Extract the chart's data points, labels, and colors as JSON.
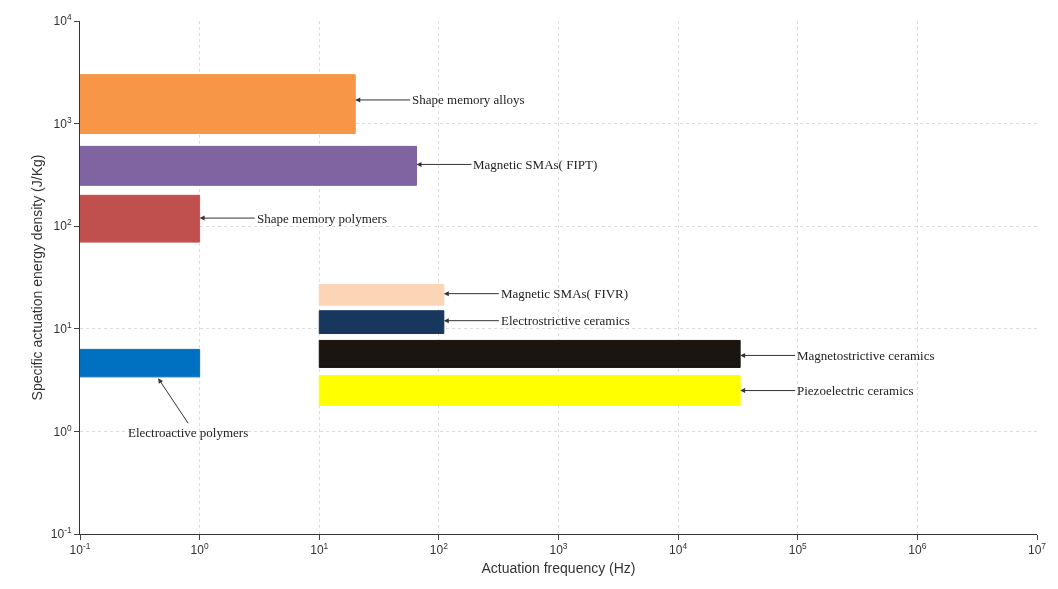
{
  "chart_data": {
    "type": "area",
    "xlabel": "Actuation frequency (Hz)",
    "ylabel": "Specific actuation energy density (J/Kg)",
    "log": "xy",
    "grid": true,
    "xlim": [
      0.1,
      10000000
    ],
    "ylim": [
      0.1,
      10000
    ],
    "xticks": [
      {
        "value": 0.1,
        "label": "10$^{-1}$"
      },
      {
        "value": 1,
        "label": "10$^{0}$"
      },
      {
        "value": 10,
        "label": "10$^{1}$"
      },
      {
        "value": 100,
        "label": "10$^{2}$"
      },
      {
        "value": 1000,
        "label": "10$^{3}$"
      },
      {
        "value": 10000,
        "label": "10$^{4}$"
      },
      {
        "value": 100000,
        "label": "10$^{5}$"
      },
      {
        "value": 1000000,
        "label": "10$^{6}$"
      },
      {
        "value": 10000000,
        "label": "10$^{7}$"
      }
    ],
    "yticks": [
      {
        "value": 0.1,
        "label": "10$^{-1}$"
      },
      {
        "value": 1,
        "label": "10$^{0}$"
      },
      {
        "value": 10,
        "label": "10$^{1}$"
      },
      {
        "value": 100,
        "label": "10$^{2}$"
      },
      {
        "value": 1000,
        "label": "10$^{3}$"
      },
      {
        "value": 10000,
        "label": "10$^{4}$"
      }
    ],
    "series": [
      {
        "color": "#f79646",
        "x": [
          0.1,
          20,
          20,
          0.1,
          0.1
        ],
        "values": [
          800,
          800,
          3000,
          3000,
          800
        ]
      },
      {
        "color": "#8064a2",
        "x": [
          0.1,
          65,
          65,
          0.1,
          0.1
        ],
        "values": [
          250,
          250,
          600,
          600,
          250
        ]
      },
      {
        "color": "#c0504d",
        "x": [
          0.1,
          1,
          1,
          0.1,
          0.1
        ],
        "values": [
          70,
          70,
          200,
          200,
          70
        ]
      },
      {
        "color": "#fbd5b5",
        "x": [
          10,
          110,
          110,
          10,
          10
        ],
        "values": [
          17,
          17,
          27,
          27,
          17
        ]
      },
      {
        "color": "#17375e",
        "x": [
          10,
          110,
          110,
          10,
          10
        ],
        "values": [
          9,
          9,
          15,
          15,
          9
        ]
      },
      {
        "color": "#1a1510",
        "x": [
          10,
          33000,
          33000,
          10,
          10
        ],
        "values": [
          4.2,
          4.2,
          7.7,
          7.7,
          4.2
        ]
      },
      {
        "color": "#ffff00",
        "x": [
          10,
          33000,
          33000,
          10,
          10
        ],
        "values": [
          1.8,
          1.8,
          3.5,
          3.5,
          1.8
        ]
      },
      {
        "color": "#0070c0",
        "x": [
          0.1,
          1,
          1,
          0.1,
          0.1
        ],
        "values": [
          3.4,
          3.4,
          6.3,
          6.3,
          3.4
        ]
      }
    ],
    "annotations": [
      {
        "text": "Shape memory alloys",
        "x": 20,
        "y": 1700
      },
      {
        "text": "Magnetic SMAs( FIPT)",
        "x": 65,
        "y": 400
      },
      {
        "text": "Shape memory polymers",
        "x": 1,
        "y": 120
      },
      {
        "text": "Magnetic SMAs( FIVR)",
        "x": 110,
        "y": 22
      },
      {
        "text": "Electrostrictive ceramics",
        "x": 110,
        "y": 12
      },
      {
        "text": "Magnetostrictive ceramics",
        "x": 33000,
        "y": 5.5
      },
      {
        "text": "Piezoelectric ceramics",
        "x": 33000,
        "y": 2.5
      },
      {
        "text": "Electroactive polymers",
        "x": 0.45,
        "y": 3.3
      }
    ]
  }
}
